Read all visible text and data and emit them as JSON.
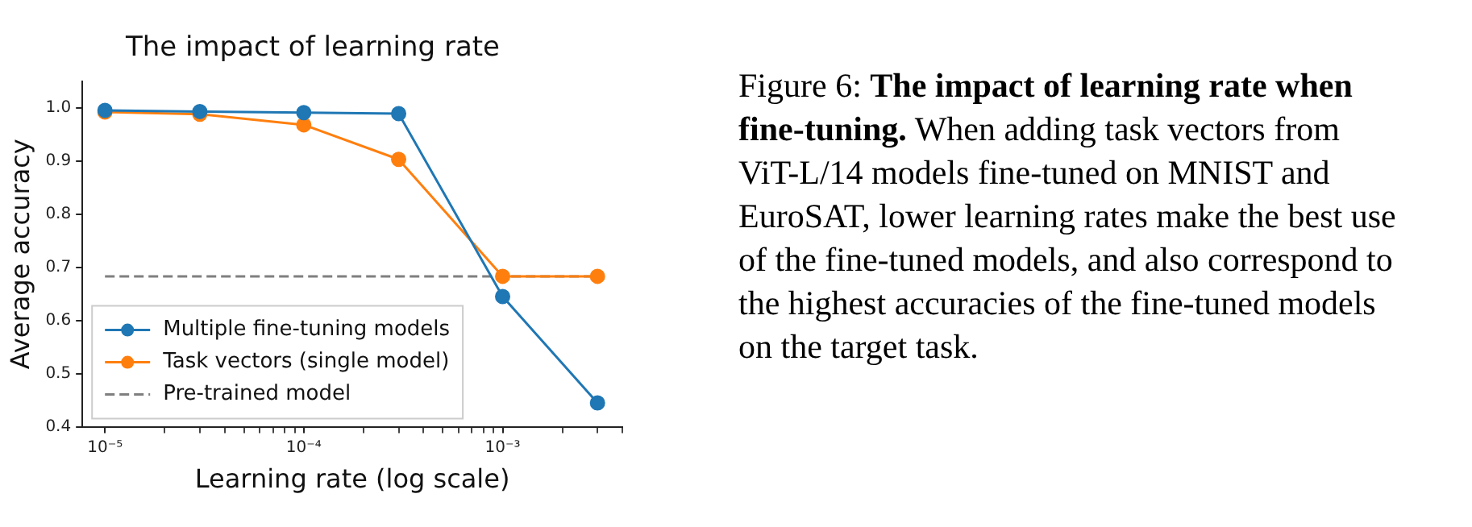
{
  "chart_data": {
    "type": "line",
    "title": "The impact of learning rate",
    "xlabel": "Learning rate (log scale)",
    "ylabel": "Average accuracy",
    "log": "x",
    "x": [
      1e-05,
      3e-05,
      0.0001,
      0.0003,
      0.001,
      0.003
    ],
    "series": [
      {
        "name": "Multiple fine-tuning models",
        "color": "#1f77b4",
        "values": [
          0.995,
          0.993,
          0.991,
          0.989,
          0.645,
          0.445
        ]
      },
      {
        "name": "Task vectors (single model)",
        "color": "#ff7f0e",
        "values": [
          0.992,
          0.988,
          0.968,
          0.903,
          0.683,
          0.683
        ]
      },
      {
        "name": "Pre-trained model",
        "color": "#7f7f7f",
        "x": [
          1e-05,
          0.003
        ],
        "values": [
          0.683,
          0.683
        ],
        "line_style": "dashed",
        "marker": "none"
      }
    ],
    "marker": "circle",
    "line_style": "solid",
    "grid": false,
    "legend": "bottom left",
    "xlim": [
      7.7e-06,
      0.004
    ],
    "xticks": [
      {
        "value": 1e-05,
        "label": "10⁻⁵"
      },
      {
        "value": 2e-05,
        "label": null
      },
      {
        "value": 3e-05,
        "label": null
      },
      {
        "value": 4e-05,
        "label": null
      },
      {
        "value": 5e-05,
        "label": null
      },
      {
        "value": 6e-05,
        "label": null
      },
      {
        "value": 7e-05,
        "label": null
      },
      {
        "value": 8e-05,
        "label": null
      },
      {
        "value": 9e-05,
        "label": null
      },
      {
        "value": 0.0001,
        "label": "10⁻⁴"
      },
      {
        "value": 0.0002,
        "label": null
      },
      {
        "value": 0.0003,
        "label": null
      },
      {
        "value": 0.0004,
        "label": null
      },
      {
        "value": 0.0005,
        "label": null
      },
      {
        "value": 0.0006,
        "label": null
      },
      {
        "value": 0.0007,
        "label": null
      },
      {
        "value": 0.0008,
        "label": null
      },
      {
        "value": 0.0009,
        "label": null
      },
      {
        "value": 0.001,
        "label": "10⁻³"
      },
      {
        "value": 0.002,
        "label": null
      },
      {
        "value": 0.003,
        "label": null
      },
      {
        "value": 0.004,
        "label": null
      }
    ],
    "ylim": [
      0.4,
      1.05
    ],
    "yticks": [
      0.4,
      0.5,
      0.6,
      0.7,
      0.8,
      0.9,
      {
        "value": 1,
        "label": "1.0"
      }
    ],
    "annotations": [
      "Figure 6:",
      "The impact of learning rate when fine-tuning.",
      "When adding task vectors from ViT-L/14 models fine-tuned on MNIST and EuroSAT, lower learning rates make the best use of the fine-tuned models, and also correspond to the highest accuracies of the fine-tuned models on the target task."
    ]
  }
}
